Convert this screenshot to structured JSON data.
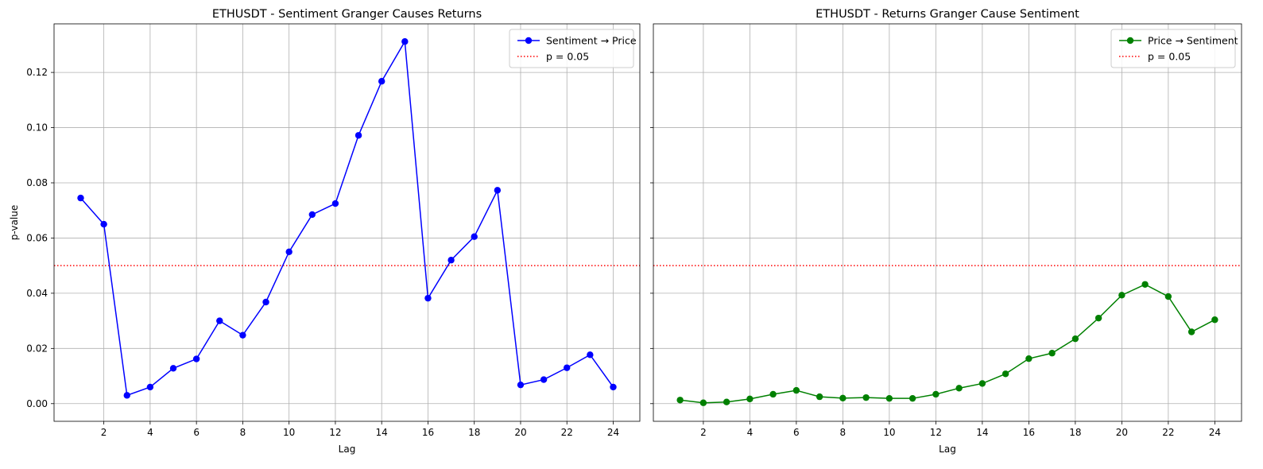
{
  "chart_data": [
    {
      "type": "line",
      "title": "ETHUSDT - Sentiment Granger Causes Returns",
      "xlabel": "Lag",
      "ylabel": "p-value",
      "x": [
        1,
        2,
        3,
        4,
        5,
        6,
        7,
        8,
        9,
        10,
        11,
        12,
        13,
        14,
        15,
        16,
        17,
        18,
        19,
        20,
        21,
        22,
        23,
        24
      ],
      "series": [
        {
          "name": "Sentiment → Price",
          "color": "#0000ff",
          "marker": "circle",
          "values": [
            0.0745,
            0.065,
            0.003,
            0.006,
            0.0128,
            0.0162,
            0.03,
            0.0248,
            0.0368,
            0.055,
            0.0685,
            0.0725,
            0.0972,
            0.1168,
            0.1312,
            0.0382,
            0.052,
            0.0605,
            0.0773,
            0.0068,
            0.0087,
            0.013,
            0.0177,
            0.006
          ]
        }
      ],
      "reference_line": {
        "label": "p = 0.05",
        "y": 0.05,
        "color": "#ff0000",
        "style": "dotted"
      },
      "xticks": [
        2,
        4,
        6,
        8,
        10,
        12,
        14,
        16,
        18,
        20,
        22,
        24
      ],
      "yticks": [
        0.0,
        0.02,
        0.04,
        0.06,
        0.08,
        0.1,
        0.12
      ],
      "ytick_labels": [
        "0.00",
        "0.02",
        "0.04",
        "0.06",
        "0.08",
        "0.10",
        "0.12"
      ],
      "xlim": [
        -0.15,
        25.15
      ],
      "ylim": [
        -0.0064,
        0.1376
      ],
      "grid": true,
      "legend_position": "top-right"
    },
    {
      "type": "line",
      "title": "ETHUSDT - Returns Granger Cause Sentiment",
      "xlabel": "Lag",
      "ylabel": "",
      "x": [
        1,
        2,
        3,
        4,
        5,
        6,
        7,
        8,
        9,
        10,
        11,
        12,
        13,
        14,
        15,
        16,
        17,
        18,
        19,
        20,
        21,
        22,
        23,
        24
      ],
      "series": [
        {
          "name": "Price → Sentiment",
          "color": "#008000",
          "marker": "circle",
          "values": [
            0.0013,
            0.0003,
            0.0006,
            0.0017,
            0.0034,
            0.0048,
            0.0025,
            0.002,
            0.0022,
            0.0019,
            0.0019,
            0.0034,
            0.0056,
            0.0073,
            0.0108,
            0.0163,
            0.0183,
            0.0235,
            0.031,
            0.0393,
            0.0432,
            0.0388,
            0.026,
            0.0304
          ]
        }
      ],
      "reference_line": {
        "label": "p = 0.05",
        "y": 0.05,
        "color": "#ff0000",
        "style": "dotted"
      },
      "xticks": [
        2,
        4,
        6,
        8,
        10,
        12,
        14,
        16,
        18,
        20,
        22,
        24
      ],
      "yticks": [
        0.0,
        0.02,
        0.04,
        0.06,
        0.08,
        0.1,
        0.12
      ],
      "ytick_labels": [],
      "xlim": [
        -0.15,
        25.15
      ],
      "ylim": [
        -0.0064,
        0.1376
      ],
      "grid": true,
      "legend_position": "top-right"
    }
  ]
}
